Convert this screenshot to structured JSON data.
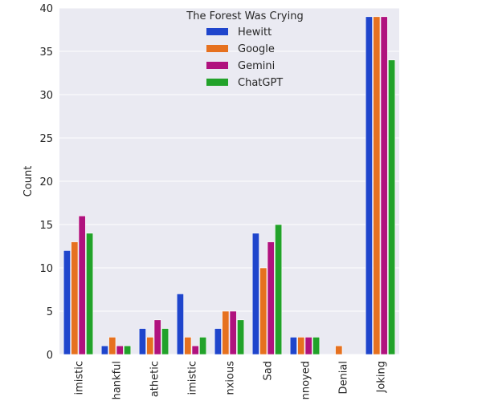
{
  "chart_data": {
    "type": "bar",
    "title": "",
    "xlabel": "",
    "ylabel": "Count",
    "ylim": [
      0,
      40
    ],
    "yticks": [
      0,
      5,
      10,
      15,
      20,
      25,
      30,
      35,
      40
    ],
    "grid": true,
    "categories": [
      "imistic",
      "hankful",
      "athetic",
      "imistic",
      "nxious",
      "Sad",
      "nnoyed",
      "Denial",
      "Joking"
    ],
    "series": [
      {
        "name": "Hewitt",
        "color": "#1f45cc",
        "values": [
          12,
          1,
          3,
          7,
          3,
          14,
          2,
          0,
          39
        ]
      },
      {
        "name": "Google",
        "color": "#e6711f",
        "values": [
          13,
          2,
          2,
          2,
          5,
          10,
          2,
          1,
          39
        ]
      },
      {
        "name": "Gemini",
        "color": "#b0127e",
        "values": [
          16,
          1,
          4,
          1,
          5,
          13,
          2,
          0,
          39
        ]
      },
      {
        "name": "ChatGPT",
        "color": "#22a22a",
        "values": [
          14,
          1,
          3,
          2,
          4,
          15,
          2,
          0,
          34
        ]
      }
    ],
    "legend": {
      "title": "The Forest Was Crying",
      "placement": "top-center"
    },
    "background": "#eaeaf2",
    "gridColor": "#ffffff"
  }
}
